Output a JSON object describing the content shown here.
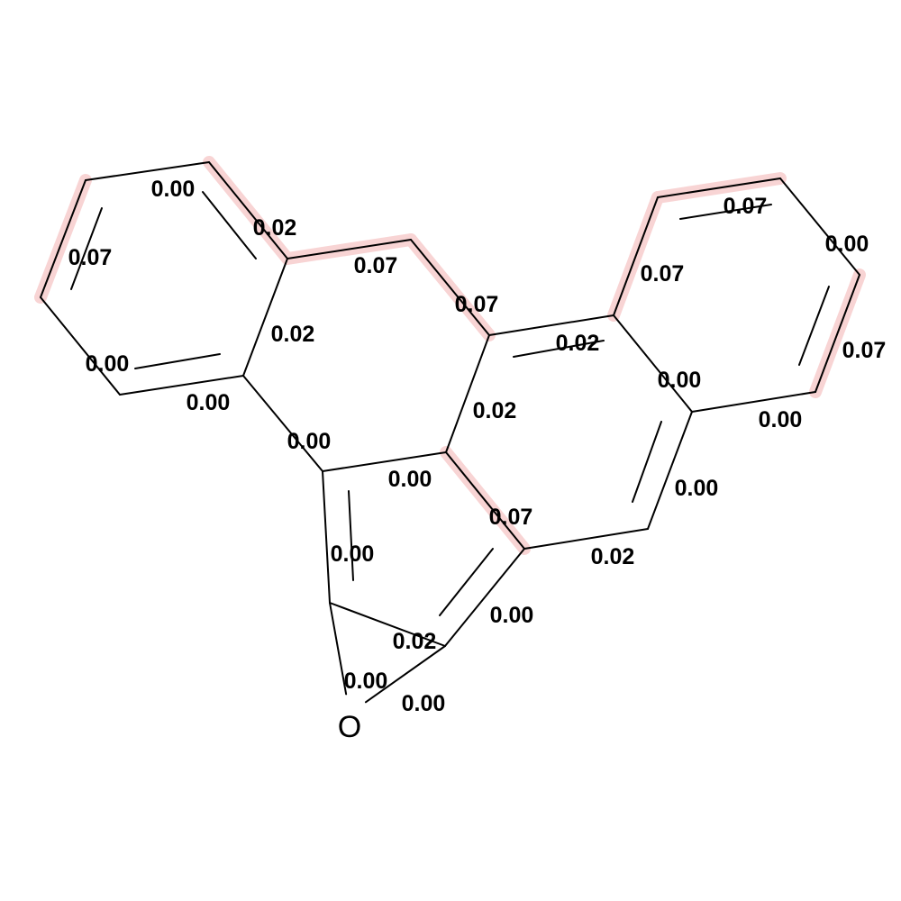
{
  "highlight_color": "#f8d4d4",
  "atom_labels": {
    "oxygen": "O"
  },
  "bond_weights": {
    "b01": "0.00",
    "b02": "0.02",
    "b03": "0.07",
    "b04": "0.00",
    "b05": "0.00",
    "b06": "0.02",
    "b07": "0.07",
    "b08": "0.07",
    "b09": "0.07",
    "b10": "0.00",
    "b11": "0.07",
    "b12": "0.07",
    "b13": "0.02",
    "b14": "0.00",
    "b15": "0.02",
    "b16": "0.00",
    "b17": "0.00",
    "b18": "0.07",
    "b19": "0.00",
    "b20": "0.00",
    "b21": "0.02",
    "b22": "0.00",
    "b23": "0.00",
    "b24": "0.02",
    "b25": "0.00",
    "b26": "0.00"
  }
}
